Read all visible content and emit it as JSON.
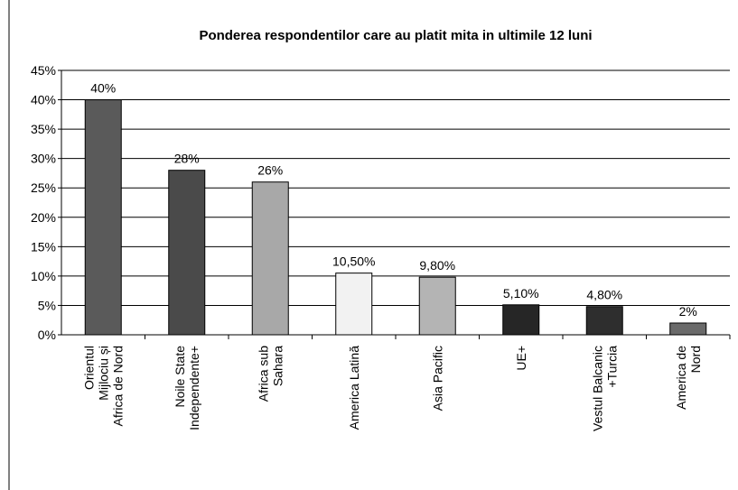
{
  "chart_data": {
    "type": "bar",
    "title": "Ponderea respondentilor care au platit mita in ultimile 12 luni",
    "categories": [
      "Orientul\nMijlociu și\nAfrica de Nord",
      "Noile State\nIndependente+",
      "Africa sub\nSahara",
      "America Latină",
      "Asia Pacific",
      "UE+",
      "Vestul Balcanic\n+Turcia",
      "America de\nNord"
    ],
    "values": [
      40,
      28,
      26,
      10.5,
      9.8,
      5.1,
      4.8,
      2
    ],
    "value_labels": [
      "40%",
      "28%",
      "26%",
      "10,50%",
      "9,80%",
      "5,10%",
      "4,80%",
      "2%"
    ],
    "colors": [
      "#5a5a5a",
      "#4a4a4a",
      "#a8a8a8",
      "#f2f2f2",
      "#b4b4b4",
      "#262626",
      "#2e2e2e",
      "#6a6a6a"
    ],
    "ylim": [
      0,
      45
    ],
    "yticks": [
      {
        "value": 0,
        "label": "0%"
      },
      {
        "value": 5,
        "label": "5%"
      },
      {
        "value": 10,
        "label": "10%"
      },
      {
        "value": 15,
        "label": "15%"
      },
      {
        "value": 20,
        "label": "20%"
      },
      {
        "value": 25,
        "label": "25%"
      },
      {
        "value": 30,
        "label": "30%"
      },
      {
        "value": 35,
        "label": "35%"
      },
      {
        "value": 40,
        "label": "40%"
      },
      {
        "value": 45,
        "label": "45%"
      }
    ],
    "grid": true
  }
}
